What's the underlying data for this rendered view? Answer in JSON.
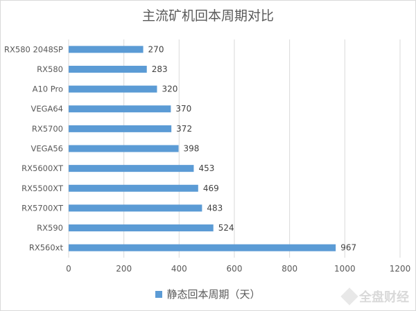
{
  "chart_data": {
    "type": "bar",
    "orientation": "horizontal",
    "title": "主流矿机回本周期对比",
    "categories": [
      "RX580 2048SP",
      "RX580",
      "A10 Pro",
      "VEGA64",
      "RX5700",
      "VEGA56",
      "RX5600XT",
      "RX5500XT",
      "RX5700XT",
      "RX590",
      "RX560xt"
    ],
    "series": [
      {
        "name": "静态回本周期（天）",
        "values": [
          270,
          283,
          320,
          370,
          372,
          398,
          453,
          469,
          483,
          524,
          967
        ]
      }
    ],
    "xlim": [
      0,
      1200
    ],
    "xticks": [
      0,
      200,
      400,
      600,
      800,
      1000,
      1200
    ],
    "grid": true,
    "legend_position": "bottom",
    "color": "#5b9bd5"
  },
  "watermark": {
    "text": "全盘财经"
  }
}
